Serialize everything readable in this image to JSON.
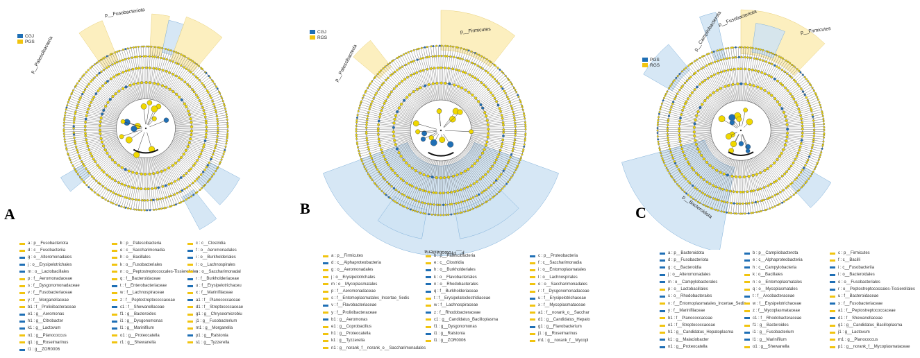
{
  "colors": {
    "blue": "#1f6fb5",
    "yellow": "#f1c40f",
    "light_blue": "#cfe3f3",
    "light_yellow": "#fbecb4",
    "gray": "#888888",
    "node_yellow": "#f0d800"
  },
  "panels": [
    {
      "id": "A",
      "letter": "A",
      "legend": [
        {
          "label": "CGJ",
          "color": "#1f6fb5"
        },
        {
          "label": "PGS",
          "color": "#f1c40f"
        }
      ],
      "clade_labels": [
        "p__Fusobacteriota",
        "p__Patescibacteria"
      ],
      "taxa": [
        [
          "a : p__Fusobacteriota",
          "b : p__Patescibacteria",
          "c : c__Clostridia"
        ],
        [
          "d : c__Fusobacteriia",
          "e : c__Saccharimonadia",
          "f : o__Aeromonadales"
        ],
        [
          "g : o__Alteromonadales",
          "h : o__Bacillales",
          "i : o__Burkholderiales"
        ],
        [
          "j : o__Erysipelotrichales",
          "k : o__Fusobacteriales",
          "l : o__Lachnospirales"
        ],
        [
          "m : o__Lactobacillales",
          "n : o__Peptostreptococcales-Tissierellales",
          "o : o__Saccharimonadal"
        ],
        [
          "p : f__Aeromonadaceae",
          "q : f__Bacteroidaceae",
          "r : f__Burkholderiaceae"
        ],
        [
          "s : f__Dysgonomonadaceae",
          "t : f__Enterobacteriaceae",
          "u : f__Erysipelotrichaceu"
        ],
        [
          "v : f__Fusobacteriaceae",
          "w : f__Lachnospiraceae",
          "x : f__Marinifilaceae"
        ],
        [
          "y : f__Morganellaceae",
          "z : f__Peptostreptococcaceae",
          "a1 : f__Planococcaceae"
        ],
        [
          "b1 : f__Prolixibacteraceae",
          "c1 : f__Shewanellaceae",
          "d1 : f__Streptococcaceae"
        ],
        [
          "e1 : g__Aeromonas",
          "f1 : g__Bacteroides",
          "g1 : g__Chryseomicrobiu"
        ],
        [
          "h1 : g__Citrobacter",
          "i1 : g__Dysgonomonas",
          "j1 : g__Fusobacterium"
        ],
        [
          "k1 : g__Lactovum",
          "l1 : g__Marinifilum",
          "m1 : g__Morganella"
        ],
        [
          "n1 : g__Planococcus",
          "o1 : g__Proteocatella",
          "p1 : g__Ralstonia"
        ],
        [
          "q1 : g__Roseimarinus",
          "r1 : g__Shewanella",
          "s1 : g__Tyzzerella"
        ],
        [
          "t1 : g__ZOR0006",
          "",
          ""
        ]
      ],
      "taxa_colors": [
        [
          "y",
          "y",
          "y"
        ],
        [
          "y",
          "y",
          "b"
        ],
        [
          "b",
          "y",
          "b"
        ],
        [
          "b",
          "y",
          "y"
        ],
        [
          "b",
          "y",
          "y"
        ],
        [
          "y",
          "y",
          "b"
        ],
        [
          "y",
          "b",
          "b"
        ],
        [
          "y",
          "y",
          "y"
        ],
        [
          "y",
          "y",
          "b"
        ],
        [
          "y",
          "b",
          "y"
        ],
        [
          "b",
          "y",
          "y"
        ],
        [
          "b",
          "b",
          "y"
        ],
        [
          "b",
          "b",
          "y"
        ],
        [
          "y",
          "y",
          "b"
        ],
        [
          "y",
          "y",
          "y"
        ],
        [
          "b",
          "",
          ""
        ]
      ]
    },
    {
      "id": "B",
      "letter": "B",
      "legend": [
        {
          "label": "CGJ",
          "color": "#1f6fb5"
        },
        {
          "label": "RGS",
          "color": "#f1c40f"
        }
      ],
      "clade_labels": [
        "p__Firmicutes",
        "p__Patescibacteria",
        "p__Proteobacteria"
      ],
      "taxa": [
        [
          "a : p__Firmicutes",
          "b : p__Patescibacteria",
          "c : p__Proteobacteria"
        ],
        [
          "d : c__Alphaproteobacteria",
          "e : c__Clostridia",
          "f : c__Saccharimonadia"
        ],
        [
          "g : o__Aeromonadales",
          "h : o__Burkholderiales",
          "i : o__Entomoplasmatales"
        ],
        [
          "j : o__Erysipelotrichales",
          "k : o__Flavobacteriales",
          "l : o__Lachnospirales"
        ],
        [
          "m : o__Mycoplasmatales",
          "n : o__Rhodobacterales",
          "o : o__Saccharimonadales"
        ],
        [
          "p : f__Aeromonadaceae",
          "q : f__Burkholderiaceae",
          "r : f__Dysgonomonadaceae"
        ],
        [
          "s : f__Entomoplasmatales_Incertae_Sedis",
          "t : f__Erysipelatoclostridiaceae",
          "u : f__Erysipelotrichaceae"
        ],
        [
          "v : f__Flavobacteriaceae",
          "w : f__Lachnospiraceae",
          "x : f__Mycoplasmataceae"
        ],
        [
          "y : f__Prolixibacteraceae",
          "z : f__Rhodobacteraceae",
          "a1 : f__norank_o__Sacchar"
        ],
        [
          "b1 : g__Aeromonas",
          "c1 : g__Candidatus_Bacilloplasma",
          "d1 : g__Candidatus_Hepato"
        ],
        [
          "e1 : g__Coprobacillus",
          "f1 : g__Dysgonomonas",
          "g1 : g__Flavobacterium"
        ],
        [
          "h1 : g__Proteocatella",
          "i1 : g__Ralstonia",
          "j1 : g__Roseimarinus"
        ],
        [
          "k1 : g__Tyzzerella",
          "l1 : g__ZOR0006",
          "m1 : g__norank_f__Mycopl"
        ],
        [
          "n1 : g__norank_f__norank_o__Saccharimonadales",
          "",
          ""
        ]
      ],
      "taxa_colors": [
        [
          "y",
          "y",
          "b"
        ],
        [
          "b",
          "y",
          "y"
        ],
        [
          "y",
          "b",
          "y"
        ],
        [
          "y",
          "b",
          "y"
        ],
        [
          "y",
          "b",
          "y"
        ],
        [
          "y",
          "b",
          "y"
        ],
        [
          "y",
          "y",
          "b"
        ],
        [
          "b",
          "y",
          "y"
        ],
        [
          "y",
          "b",
          "y"
        ],
        [
          "b",
          "y",
          "y"
        ],
        [
          "y",
          "y",
          "b"
        ],
        [
          "y",
          "b",
          "y"
        ],
        [
          "y",
          "y",
          "y"
        ],
        [
          "y",
          "",
          ""
        ]
      ]
    },
    {
      "id": "C",
      "letter": "C",
      "legend": [
        {
          "label": "PGS",
          "color": "#1f6fb5"
        },
        {
          "label": "RGS",
          "color": "#f1c40f"
        }
      ],
      "clade_labels": [
        "p__Campilobacterota",
        "p__Fusobacteriota",
        "p__Firmicutes",
        "p__Bacteroidota"
      ],
      "taxa": [
        [
          "a : p__Bacteroidota",
          "b : p__Campilobacterota",
          "c : p__Firmicutes"
        ],
        [
          "d : p__Fusobacteriota",
          "e : c__Alphaproteobacteria",
          "f : c__Bacilli"
        ],
        [
          "g : c__Bacteroidia",
          "h : c__Campylobacteria",
          "i : c__Fusobacteriia"
        ],
        [
          "j : o__Alteromonadales",
          "k : o__Bacillales",
          "l : o__Bacteroidales"
        ],
        [
          "m : o__Campylobacterales",
          "n : o__Entomoplasmatales",
          "o : o__Fusobacteriales"
        ],
        [
          "p : o__Lactobacillales",
          "q : o__Mycoplasmatales",
          "r : o__Peptostreptococcales-Tissierellales"
        ],
        [
          "s : o__Rhodobacterales",
          "t : f__Arcobacteraceae",
          "u : f__Bacteroidaceae"
        ],
        [
          "v : f__Entomoplasmatales_Incertae_Sedis",
          "w : f__Erysipelotrichaceae",
          "x : f__Fusobacteriaceae"
        ],
        [
          "y : f__Marinifilaceae",
          "z : f__Mycoplasmataceae",
          "a1 : f__Peptostreptococcaceae"
        ],
        [
          "b1 : f__Planococcaceae",
          "c1 : f__Rhodobacteraceae",
          "d1 : f__Shewanellaceae"
        ],
        [
          "e1 : f__Streptococcaceae",
          "f1 : g__Bacteroides",
          "g1 : g__Candidatus_Bacilloplasma"
        ],
        [
          "h1 : g__Candidatus_Hepatoplasma",
          "i1 : g__Fusobacterium",
          "j1 : g__Lactovum"
        ],
        [
          "k1 : g__Malaciobacter",
          "l1 : g__Marinifilum",
          "m1 : g__Planococcus"
        ],
        [
          "n1 : g__Proteocatella",
          "o1 : g__Shewanella",
          "p1 : g__norank_f__Mycoplasmataceae"
        ]
      ],
      "taxa_colors": [
        [
          "b",
          "b",
          "y"
        ],
        [
          "b",
          "b",
          "y"
        ],
        [
          "b",
          "b",
          "b"
        ],
        [
          "b",
          "y",
          "b"
        ],
        [
          "b",
          "y",
          "b"
        ],
        [
          "y",
          "y",
          "b"
        ],
        [
          "b",
          "b",
          "y"
        ],
        [
          "y",
          "y",
          "b"
        ],
        [
          "b",
          "y",
          "y"
        ],
        [
          "y",
          "b",
          "b"
        ],
        [
          "y",
          "y",
          "y"
        ],
        [
          "y",
          "b",
          "y"
        ],
        [
          "b",
          "b",
          "y"
        ],
        [
          "b",
          "y",
          "y"
        ]
      ]
    }
  ]
}
